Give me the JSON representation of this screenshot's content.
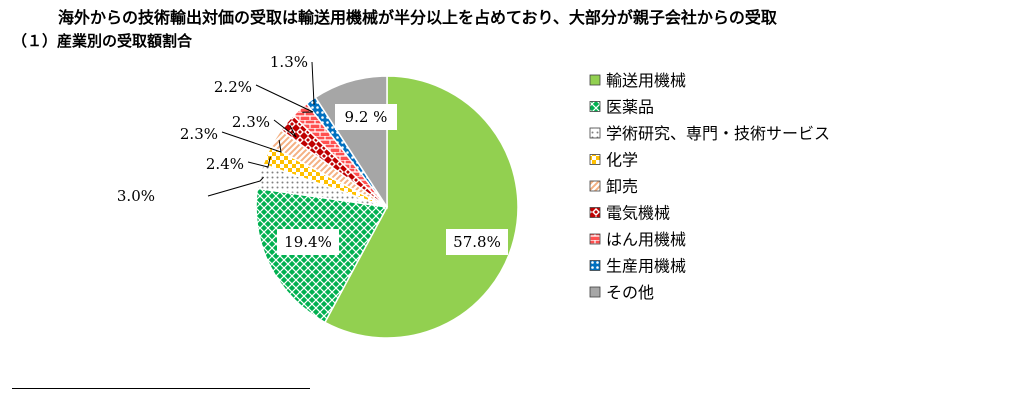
{
  "heading": "海外からの技術輸出対価の受取は輸送用機械が半分以上を占めており、大部分が親子会社からの受取",
  "subheading": "（１）産業別の受取額割合",
  "chart_data": {
    "type": "pie",
    "categories": [
      "輸送用機械",
      "医薬品",
      "学術研究、専門・技術サービス",
      "化学",
      "卸売",
      "電気機械",
      "はん用機械",
      "生産用機械",
      "その他"
    ],
    "values": [
      57.8,
      19.4,
      3.0,
      2.4,
      2.3,
      2.3,
      2.2,
      1.3,
      9.2
    ],
    "labels": [
      "57.8%",
      "19.4%",
      "3.0%",
      "2.4%",
      "2.3%",
      "2.3%",
      "2.2%",
      "1.3%",
      "9.2 %"
    ],
    "colors": [
      "#92D050",
      "#00B050",
      "#D9D9D9",
      "#FFC000",
      "#F4B183",
      "#C00000",
      "#FF5050",
      "#0070C0",
      "#A6A6A6"
    ],
    "patterns": [
      "solid",
      "grid",
      "dots",
      "check",
      "diagonal",
      "diamond",
      "brick",
      "dots",
      "solid"
    ],
    "start": "12 o'clock",
    "direction": "clockwise",
    "legend": "right"
  }
}
